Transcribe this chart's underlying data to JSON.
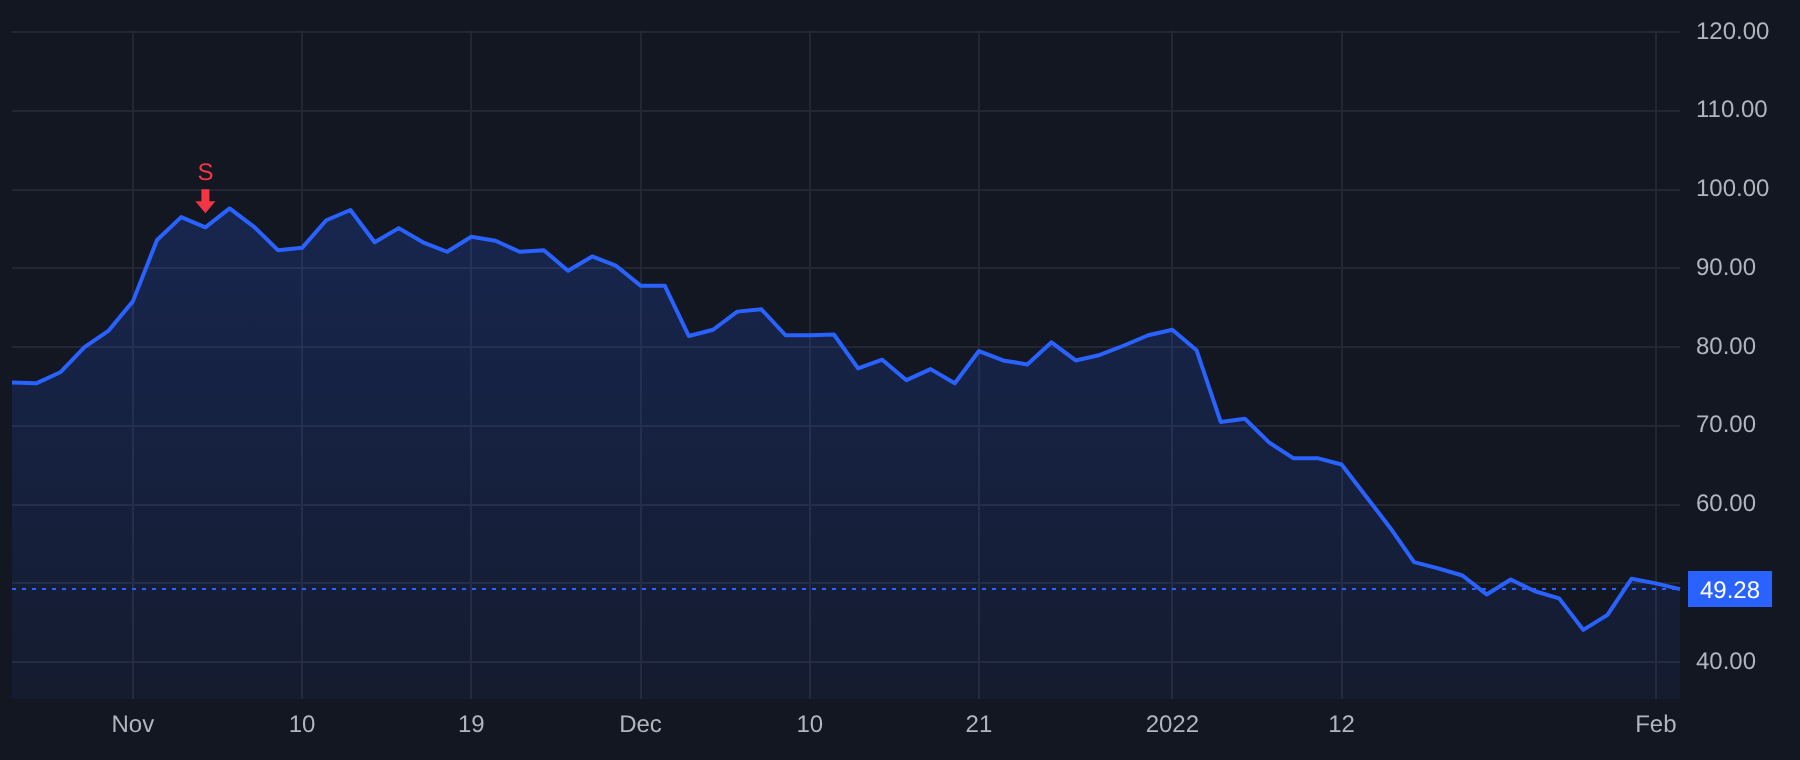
{
  "chart_data": {
    "type": "area",
    "categories": [
      null,
      null,
      null,
      null,
      null,
      "Nov",
      null,
      null,
      null,
      null,
      null,
      null,
      "10",
      null,
      null,
      null,
      null,
      null,
      null,
      "19",
      null,
      null,
      null,
      null,
      null,
      null,
      "Dec",
      null,
      null,
      null,
      null,
      null,
      null,
      "10",
      null,
      null,
      null,
      null,
      null,
      null,
      "21",
      null,
      null,
      null,
      null,
      null,
      null,
      null,
      "2022",
      null,
      null,
      null,
      null,
      null,
      null,
      "12",
      null,
      null,
      null,
      null,
      null,
      null,
      null,
      null,
      null,
      null,
      null,
      null,
      "Feb",
      null
    ],
    "series": [
      {
        "color": "#2962ff",
        "values": [
          75.5,
          75.4,
          76.8,
          80.0,
          82.1,
          85.8,
          93.6,
          96.5,
          95.2,
          97.6,
          95.3,
          92.3,
          92.6,
          96.1,
          97.4,
          93.3,
          95.1,
          93.3,
          92.1,
          94.0,
          93.5,
          92.1,
          92.3,
          89.7,
          91.5,
          90.3,
          87.8,
          87.8,
          81.4,
          82.2,
          84.5,
          84.8,
          81.5,
          81.5,
          81.6,
          77.3,
          78.4,
          75.8,
          77.2,
          75.4,
          79.5,
          78.3,
          77.8,
          80.6,
          78.3,
          79.0,
          80.2,
          81.5,
          82.2,
          79.6,
          70.5,
          70.9,
          67.9,
          65.9,
          65.9,
          65.1,
          61.1,
          57.1,
          52.7,
          51.9,
          51.0,
          48.6,
          50.5,
          49.0,
          48.1,
          44.1,
          46.0,
          50.6,
          50.0,
          49.28
        ]
      }
    ],
    "ylim": [
      35.3,
      120.2
    ],
    "yticks": [
      {
        "value": 40,
        "label": "40.00"
      },
      {
        "value": 50,
        "label": null
      },
      {
        "value": 60,
        "label": "60.00"
      },
      {
        "value": 70,
        "label": "70.00"
      },
      {
        "value": 80,
        "label": "80.00"
      },
      {
        "value": 90,
        "label": "90.00"
      },
      {
        "value": 100,
        "label": "100.00"
      },
      {
        "value": 110,
        "label": "110.00"
      },
      {
        "value": 120,
        "label": "120.00"
      }
    ],
    "ref_lines": [
      {
        "axis": "y",
        "value": 49.28,
        "label": "49.28",
        "color": "#2962ff",
        "line_style": "dotted"
      }
    ],
    "annotations": [
      {
        "text": "S",
        "y": 95.2
      }
    ],
    "grid": true,
    "legend": false,
    "marker": "none",
    "line_style": "solid"
  }
}
